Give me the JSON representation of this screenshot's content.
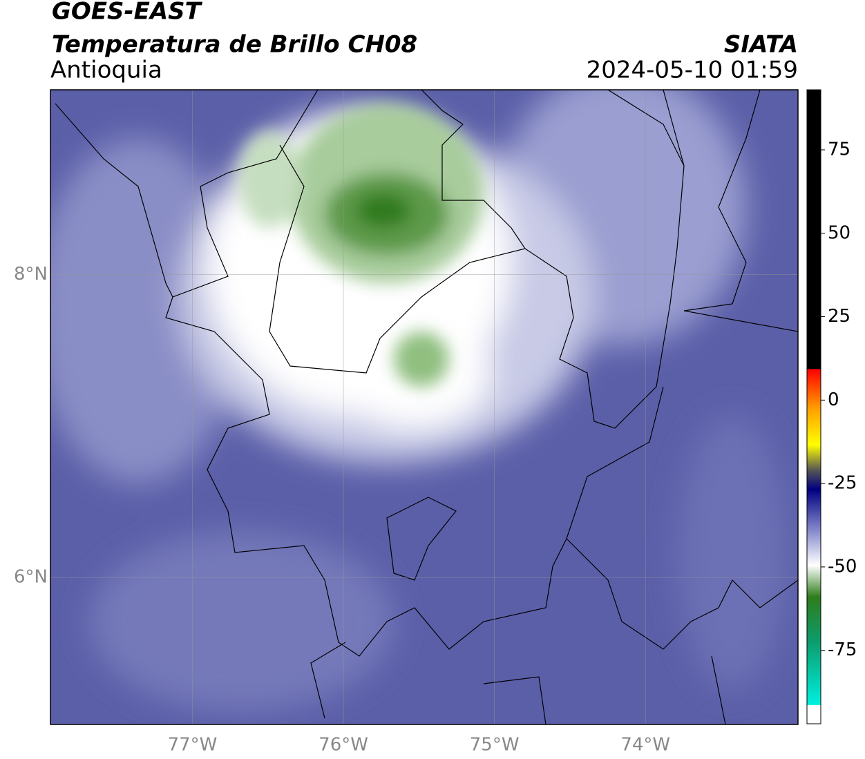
{
  "header": {
    "title": "GOES-EAST",
    "subtitle": "Temperatura de Brillo CH08",
    "region": "Antioquia",
    "brand": "SIATA",
    "timestamp": "2024-05-10 01:59"
  },
  "map": {
    "xlim": [
      -77.94,
      -72.99
    ],
    "ylim": [
      5.03,
      9.22
    ],
    "xticks": [
      {
        "value": -77,
        "label": "77°W"
      },
      {
        "value": -76,
        "label": "76°W"
      },
      {
        "value": -75,
        "label": "75°W"
      },
      {
        "value": -74,
        "label": "74°W"
      }
    ],
    "yticks": [
      {
        "value": 8,
        "label": "8°N"
      },
      {
        "value": 6,
        "label": "6°N"
      }
    ]
  },
  "colorbar": {
    "lim": [
      -97,
      93
    ],
    "ticks": [
      75,
      50,
      25,
      0,
      -25,
      -50,
      -75
    ]
  }
}
